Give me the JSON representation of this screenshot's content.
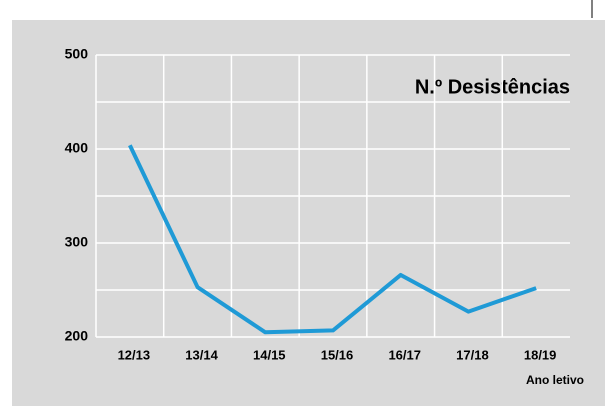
{
  "chart_data": {
    "type": "line",
    "title": "N.º Desistências",
    "x_label": "Ano letivo",
    "categories": [
      "12/13",
      "13/14",
      "14/15",
      "15/16",
      "16/17",
      "17/18",
      "18/19"
    ],
    "values": [
      404,
      253,
      205,
      207,
      266,
      227,
      252
    ],
    "color": "#1f9ad6",
    "ylim": [
      200,
      500
    ],
    "yticks": [
      200,
      300,
      400,
      500
    ],
    "minor_yticks": [
      250,
      350,
      450
    ],
    "grid": true
  }
}
